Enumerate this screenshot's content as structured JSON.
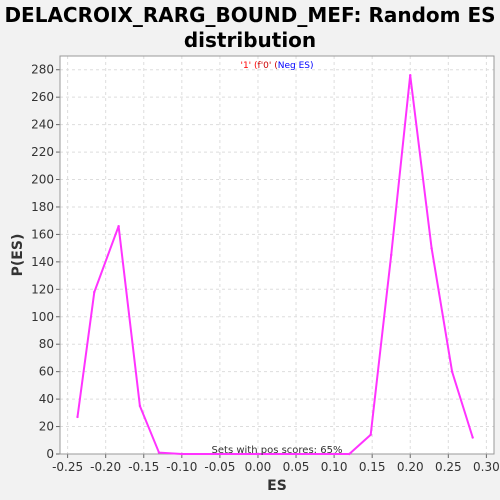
{
  "window": {
    "title_line1": "DELACROIX_RARG_BOUND_MEF: Random ES",
    "title_line2": "distribution"
  },
  "chart_data": {
    "type": "line",
    "title": "DELACROIX_RARG_BOUND_MEF: Random ES distribution",
    "xlabel": "ES",
    "ylabel": "P(ES)",
    "xlim": [
      -0.26,
      0.31
    ],
    "ylim": [
      0,
      290
    ],
    "x_ticks": [
      "-0.25",
      "-0.20",
      "-0.15",
      "-0.10",
      "-0.05",
      "0.00",
      "0.05",
      "0.10",
      "0.15",
      "0.20",
      "0.25",
      "0.30"
    ],
    "y_ticks": [
      "0",
      "20",
      "40",
      "60",
      "80",
      "100",
      "120",
      "140",
      "160",
      "180",
      "200",
      "220",
      "240",
      "260",
      "280"
    ],
    "grid": true,
    "legend": {
      "position": "top-center",
      "items": [
        {
          "text": "'1' (",
          "color": "#ff0000"
        },
        {
          "text": "f'0' (",
          "color": "#cc0000"
        },
        {
          "text": "Neg ES)",
          "color": "#0000ff"
        }
      ]
    },
    "annotation": "Sets with pos scores: 65%",
    "series": [
      {
        "color": "#ff33ff",
        "x": [
          -0.237,
          -0.215,
          -0.183,
          -0.155,
          -0.13,
          -0.1,
          0.0,
          0.12,
          0.148,
          0.175,
          0.2,
          0.228,
          0.255,
          0.282
        ],
        "y": [
          27,
          118,
          166,
          35,
          1,
          0,
          0,
          0,
          14,
          145,
          276,
          150,
          60,
          12
        ]
      }
    ]
  }
}
